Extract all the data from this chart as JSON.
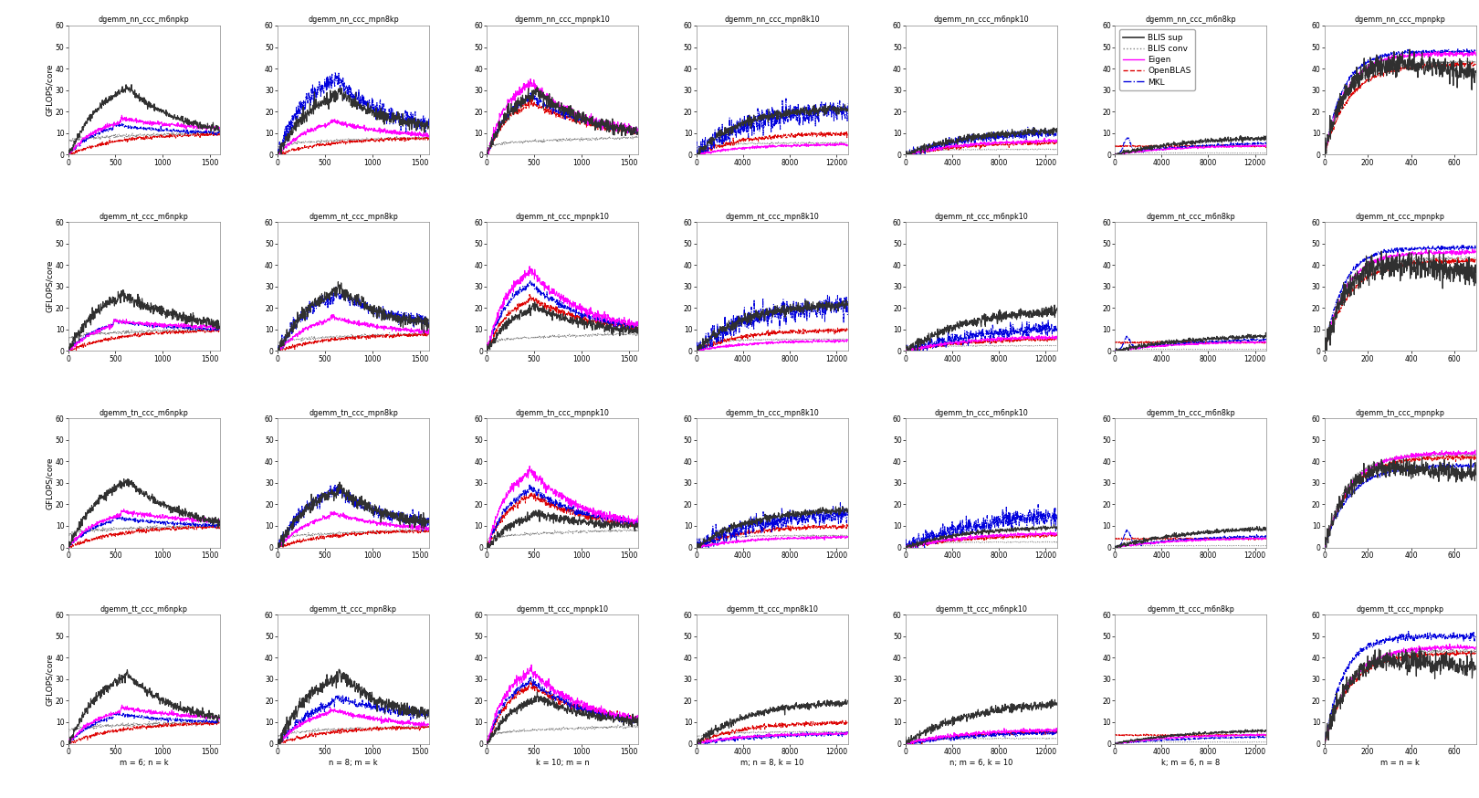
{
  "rows": 4,
  "cols": 7,
  "subplot_titles": [
    [
      "dgemm_nn_ccc_m6npkp",
      "dgemm_nn_ccc_mpn8kp",
      "dgemm_nn_ccc_mpnpk10",
      "dgemm_nn_ccc_mpn8k10",
      "dgemm_nn_ccc_m6npk10",
      "dgemm_nn_ccc_m6n8kp",
      "dgemm_nn_ccc_mpnpkp"
    ],
    [
      "dgemm_nt_ccc_m6npkp",
      "dgemm_nt_ccc_mpn8kp",
      "dgemm_nt_ccc_mpnpk10",
      "dgemm_nt_ccc_mpn8k10",
      "dgemm_nt_ccc_m6npk10",
      "dgemm_nt_ccc_m6n8kp",
      "dgemm_nt_ccc_mpnpkp"
    ],
    [
      "dgemm_tn_ccc_m6npkp",
      "dgemm_tn_ccc_mpn8kp",
      "dgemm_tn_ccc_mpnpk10",
      "dgemm_tn_ccc_mpn8k10",
      "dgemm_tn_ccc_m6npk10",
      "dgemm_tn_ccc_m6n8kp",
      "dgemm_tn_ccc_mpnpkp"
    ],
    [
      "dgemm_tt_ccc_m6npkp",
      "dgemm_tt_ccc_mpn8kp",
      "dgemm_tt_ccc_mpnpk10",
      "dgemm_tt_ccc_mpn8k10",
      "dgemm_tt_ccc_m6npk10",
      "dgemm_tt_ccc_m6n8kp",
      "dgemm_tt_ccc_mpnpkp"
    ]
  ],
  "xlabels_bottom": [
    "m = 6; n = k",
    "n = 8; m = k",
    "k = 10; m = n",
    "m; n = 8, k = 10",
    "n; m = 6, k = 10",
    "k; m = 6, n = 8",
    "m = n = k"
  ],
  "xranges": [
    [
      [
        0,
        1600
      ],
      [
        0,
        1600
      ],
      [
        0,
        1600
      ],
      [
        0,
        13000
      ],
      [
        0,
        13000
      ],
      [
        0,
        13000
      ],
      [
        0,
        700
      ]
    ],
    [
      [
        0,
        1600
      ],
      [
        0,
        1600
      ],
      [
        0,
        1600
      ],
      [
        0,
        13000
      ],
      [
        0,
        13000
      ],
      [
        0,
        13000
      ],
      [
        0,
        700
      ]
    ],
    [
      [
        0,
        1600
      ],
      [
        0,
        1600
      ],
      [
        0,
        1600
      ],
      [
        0,
        13000
      ],
      [
        0,
        13000
      ],
      [
        0,
        13000
      ],
      [
        0,
        700
      ]
    ],
    [
      [
        0,
        1600
      ],
      [
        0,
        1600
      ],
      [
        0,
        1600
      ],
      [
        0,
        13000
      ],
      [
        0,
        13000
      ],
      [
        0,
        13000
      ],
      [
        0,
        700
      ]
    ]
  ],
  "xtick_sets": [
    [
      [
        0,
        500,
        1000,
        1500
      ],
      [
        0,
        500,
        1000,
        1500
      ],
      [
        0,
        500,
        1000,
        1500
      ],
      [
        0,
        4000,
        8000,
        12000
      ],
      [
        0,
        4000,
        8000,
        12000
      ],
      [
        0,
        4000,
        8000,
        12000
      ],
      [
        0,
        200,
        400,
        600
      ]
    ],
    [
      [
        0,
        500,
        1000,
        1500
      ],
      [
        0,
        500,
        1000,
        1500
      ],
      [
        0,
        500,
        1000,
        1500
      ],
      [
        0,
        4000,
        8000,
        12000
      ],
      [
        0,
        4000,
        8000,
        12000
      ],
      [
        0,
        4000,
        8000,
        12000
      ],
      [
        0,
        200,
        400,
        600
      ]
    ],
    [
      [
        0,
        500,
        1000,
        1500
      ],
      [
        0,
        500,
        1000,
        1500
      ],
      [
        0,
        500,
        1000,
        1500
      ],
      [
        0,
        4000,
        8000,
        12000
      ],
      [
        0,
        4000,
        8000,
        12000
      ],
      [
        0,
        4000,
        8000,
        12000
      ],
      [
        0,
        200,
        400,
        600
      ]
    ],
    [
      [
        0,
        500,
        1000,
        1500
      ],
      [
        0,
        500,
        1000,
        1500
      ],
      [
        0,
        500,
        1000,
        1500
      ],
      [
        0,
        4000,
        8000,
        12000
      ],
      [
        0,
        4000,
        8000,
        12000
      ],
      [
        0,
        4000,
        8000,
        12000
      ],
      [
        0,
        200,
        400,
        600
      ]
    ]
  ],
  "yrange": [
    0,
    60
  ],
  "yticks": [
    0,
    10,
    20,
    30,
    40,
    50,
    60
  ],
  "ylabel": "GFLOPS/core",
  "legend_entries": [
    "BLIS sup",
    "BLIS conv",
    "Eigen",
    "OpenBLAS",
    "MKL"
  ],
  "legend_row": 0,
  "legend_col": 5,
  "line_colors": {
    "blis_sup": "#303030",
    "blis_conv": "#808080",
    "eigen": "#ff00ff",
    "openblas": "#dd0000",
    "mkl": "#0000dd"
  },
  "line_styles": {
    "blis_sup": "solid",
    "blis_conv": "dotted",
    "eigen": "solid",
    "openblas": "dashed",
    "mkl": "dashdot"
  }
}
